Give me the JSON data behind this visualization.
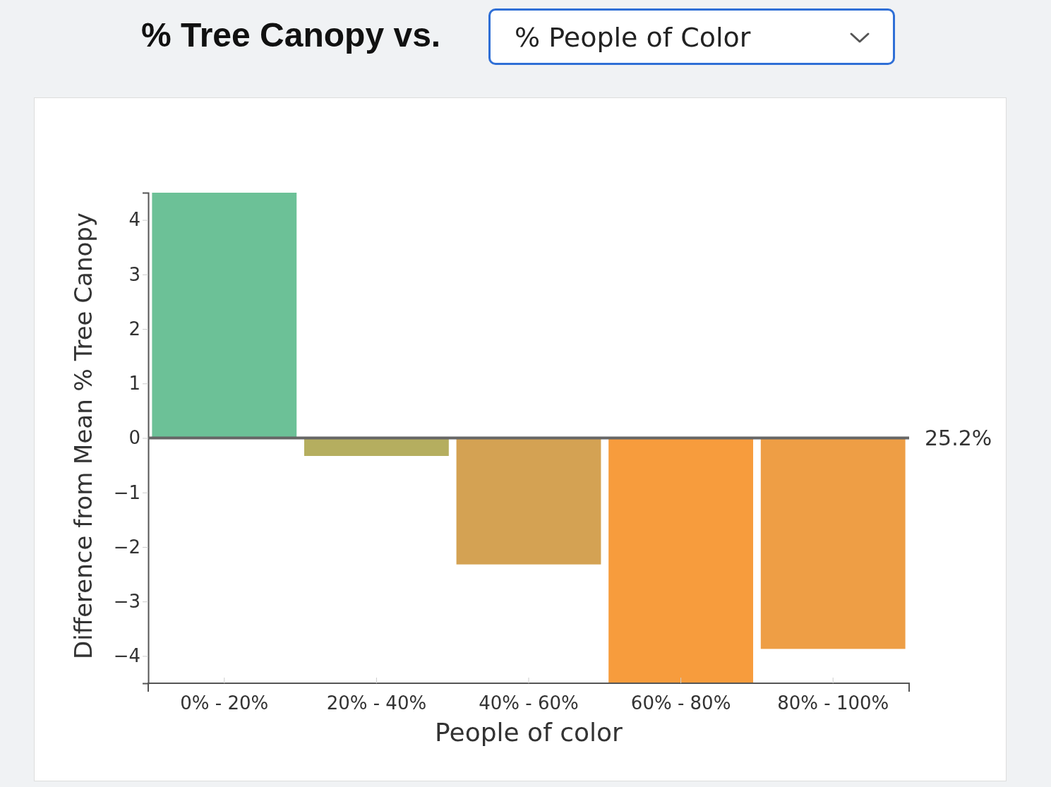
{
  "chart_data": {
    "type": "bar",
    "title": "% Tree Canopy vs.",
    "subtitle": "% People of Color",
    "xlabel": "People of color",
    "ylabel": "Difference from Mean % Tree Canopy",
    "categories": [
      "0% - 20%",
      "20% - 40%",
      "40% - 60%",
      "60% - 80%",
      "80% - 100%"
    ],
    "values": [
      4.5,
      -0.33,
      -2.32,
      -4.5,
      -3.87
    ],
    "colors": [
      "#6cc197",
      "#b5ae5f",
      "#d4a253",
      "#f79c3d",
      "#ee9e45"
    ],
    "ylim": [
      -4.5,
      4.5
    ],
    "yticks": [
      -4,
      -3,
      -2,
      -1,
      0,
      1,
      2,
      3,
      4
    ],
    "annotations": [
      "25.2%"
    ]
  }
}
